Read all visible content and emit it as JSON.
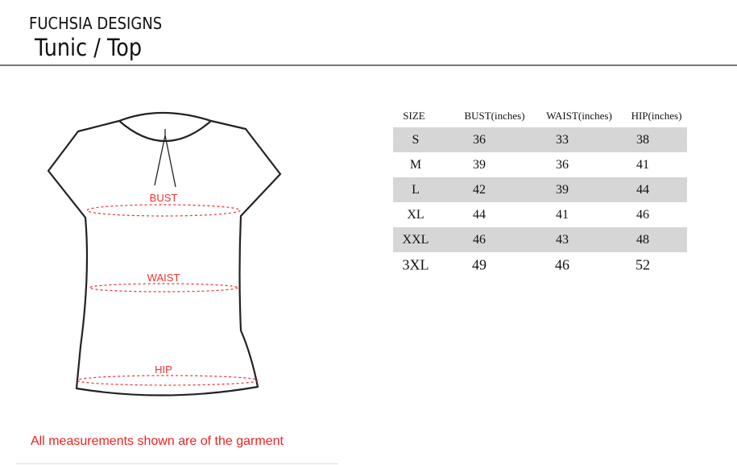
{
  "header": {
    "brand": "FUCHSIA DESIGNS",
    "title": "Tunic / Top"
  },
  "diagram": {
    "labels": {
      "bust": "BUST",
      "waist": "WAIST",
      "hip": "HIP"
    },
    "line_color": "#f03030"
  },
  "table": {
    "headers": [
      "SIZE",
      "BUST(inches)",
      "WAIST(inches)",
      "HIP(inches)"
    ],
    "rows": [
      [
        "S",
        "36",
        "33",
        "38"
      ],
      [
        "M",
        "39",
        "36",
        "41"
      ],
      [
        "L",
        "42",
        "39",
        "44"
      ],
      [
        "XL",
        "44",
        "41",
        "46"
      ],
      [
        "XXL",
        "46",
        "43",
        "48"
      ],
      [
        "3XL",
        "49",
        "46",
        "52"
      ]
    ],
    "shade_color": "#d6d6d6"
  },
  "footer": {
    "note": "All measurements shown are of the garment"
  }
}
